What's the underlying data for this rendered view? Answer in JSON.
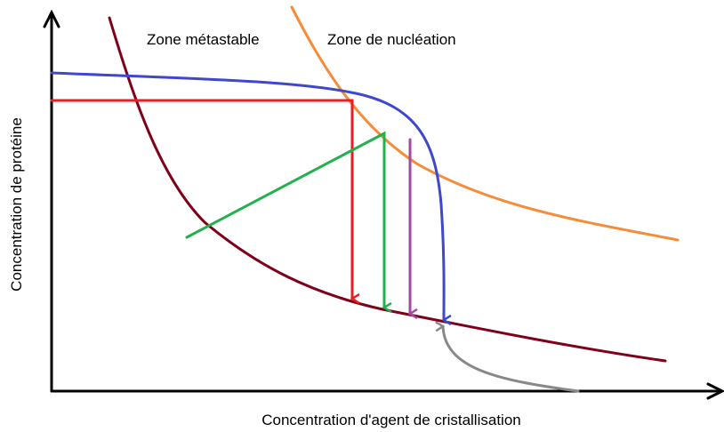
{
  "labels": {
    "metastable": "Zone métastable",
    "nucleation": "Zone de nucléation"
  },
  "axes": {
    "y_label": "Concentration de protéine",
    "x_label": "Concentration d'agent de cristallisation"
  }
}
